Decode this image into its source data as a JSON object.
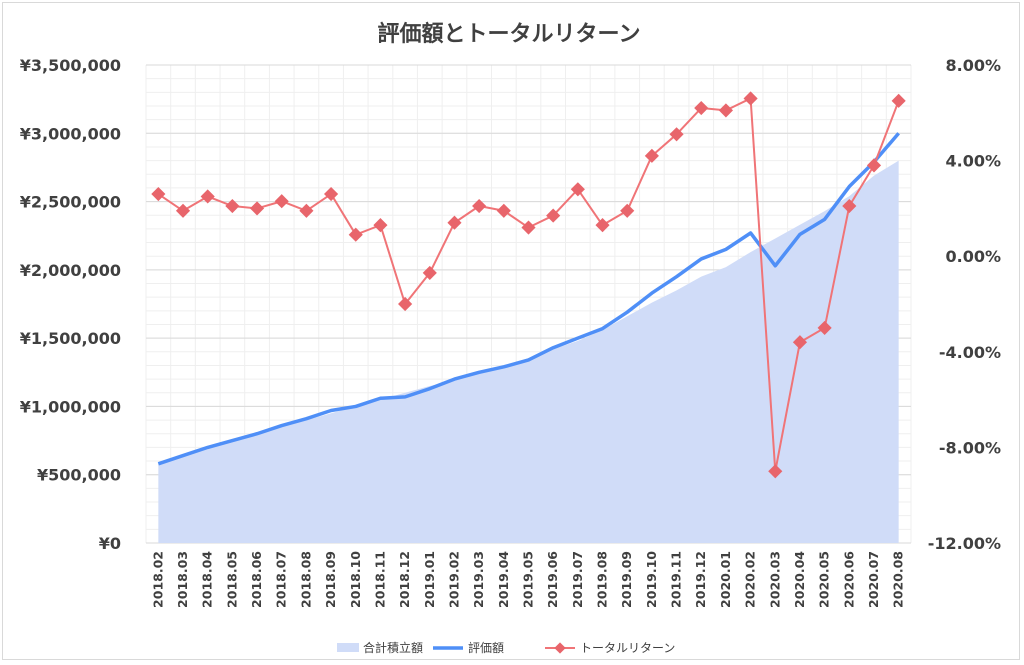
{
  "chart_data": {
    "type": "line",
    "title": "評価額とトータルリターン",
    "categories": [
      "2018.02",
      "2018.03",
      "2018.04",
      "2018.05",
      "2018.06",
      "2018.07",
      "2018.08",
      "2018.09",
      "2018.10",
      "2018.11",
      "2018.12",
      "2019.01",
      "2019.02",
      "2019.03",
      "2019.04",
      "2019.05",
      "2019.06",
      "2019.07",
      "2019.08",
      "2019.09",
      "2019.10",
      "2019.11",
      "2019.12",
      "2020.01",
      "2020.02",
      "2020.03",
      "2020.04",
      "2020.05",
      "2020.06",
      "2020.07",
      "2020.08"
    ],
    "y_left": {
      "ticks": [
        "¥3,500,000",
        "¥3,000,000",
        "¥2,500,000",
        "¥2,000,000",
        "¥1,500,000",
        "¥1,000,000",
        "¥500,000",
        "¥0"
      ],
      "min": 0,
      "max": 3500000
    },
    "y_right": {
      "ticks": [
        "8.00%",
        "4.00%",
        "0.00%",
        "-4.00%",
        "-8.00%",
        "-12.00%"
      ],
      "min": -12,
      "max": 8
    },
    "series": [
      {
        "name": "合計積立額",
        "type": "area",
        "axis": "left",
        "color": "#d0dcf8",
        "values": [
          590000,
          650000,
          710000,
          760000,
          810000,
          860000,
          900000,
          950000,
          1000000,
          1050000,
          1100000,
          1150000,
          1190000,
          1240000,
          1290000,
          1350000,
          1420000,
          1480000,
          1560000,
          1660000,
          1760000,
          1850000,
          1950000,
          2020000,
          2130000,
          2230000,
          2330000,
          2430000,
          2540000,
          2690000,
          2800000
        ]
      },
      {
        "name": "評価額",
        "type": "line",
        "axis": "left",
        "color": "#4f8ff7",
        "values": [
          580000,
          640000,
          700000,
          750000,
          800000,
          860000,
          910000,
          970000,
          1000000,
          1060000,
          1070000,
          1130000,
          1200000,
          1250000,
          1290000,
          1340000,
          1430000,
          1500000,
          1570000,
          1690000,
          1830000,
          1950000,
          2080000,
          2150000,
          2270000,
          2030000,
          2260000,
          2370000,
          2610000,
          2790000,
          3000000
        ]
      },
      {
        "name": "トータルリターン",
        "type": "line",
        "axis": "right",
        "color": "#f07477",
        "marker": "diamond",
        "values": [
          2.6,
          1.9,
          2.5,
          2.1,
          2.0,
          2.3,
          1.9,
          2.6,
          0.9,
          1.3,
          -2.0,
          -0.7,
          1.4,
          2.1,
          1.9,
          1.2,
          1.7,
          2.8,
          1.3,
          1.9,
          4.2,
          5.1,
          6.2,
          6.1,
          6.6,
          -9.0,
          -3.6,
          -3.0,
          2.1,
          3.8,
          6.5
        ]
      }
    ],
    "grid": true,
    "legend_position": "bottom"
  }
}
